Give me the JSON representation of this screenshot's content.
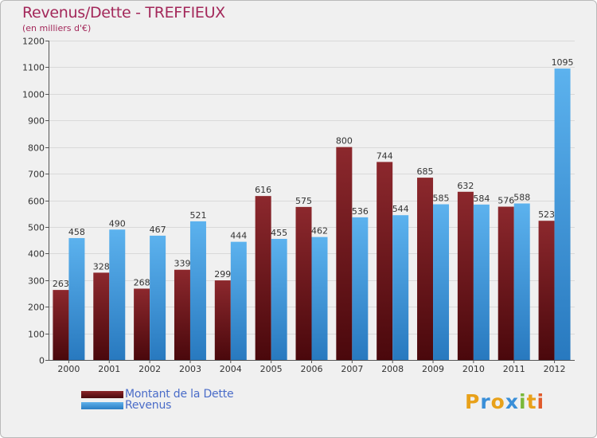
{
  "title": "Revenus/Dette - TREFFIEUX",
  "subtitle": "(en milliers d'€)",
  "colors": {
    "dette": "#7a1a1f",
    "revenus": "#3a96dc",
    "title": "#a3285a",
    "legend_text": "#4a6cc8"
  },
  "chart_data": {
    "type": "bar",
    "title": "Revenus/Dette - TREFFIEUX",
    "ylabel": "(en milliers d'€)",
    "xlabel": "",
    "categories": [
      "2000",
      "2001",
      "2002",
      "2003",
      "2004",
      "2005",
      "2006",
      "2007",
      "2008",
      "2009",
      "2010",
      "2011",
      "2012"
    ],
    "series": [
      {
        "name": "Montant de la Dette",
        "values": [
          263,
          328,
          268,
          339,
          299,
          616,
          575,
          800,
          744,
          685,
          632,
          576,
          523
        ]
      },
      {
        "name": "Revenus",
        "values": [
          458,
          490,
          467,
          521,
          444,
          455,
          462,
          536,
          544,
          585,
          584,
          588,
          1095
        ]
      }
    ],
    "ylim": [
      0,
      1200
    ],
    "yticks": [
      0,
      100,
      200,
      300,
      400,
      500,
      600,
      700,
      800,
      900,
      1000,
      1100,
      1200
    ],
    "grid": true,
    "legend_position": "bottom-left"
  },
  "legend": {
    "dette_label": "Montant de la Dette",
    "revenus_label": "Revenus"
  },
  "logo": {
    "letters": [
      "P",
      "r",
      "o",
      "x",
      "i",
      "t",
      "i"
    ],
    "colors": [
      "#e8a11a",
      "#3a8fd8",
      "#e8a11a",
      "#3a8fd8",
      "#7ab83a",
      "#e8a11a",
      "#e05a2a"
    ]
  }
}
